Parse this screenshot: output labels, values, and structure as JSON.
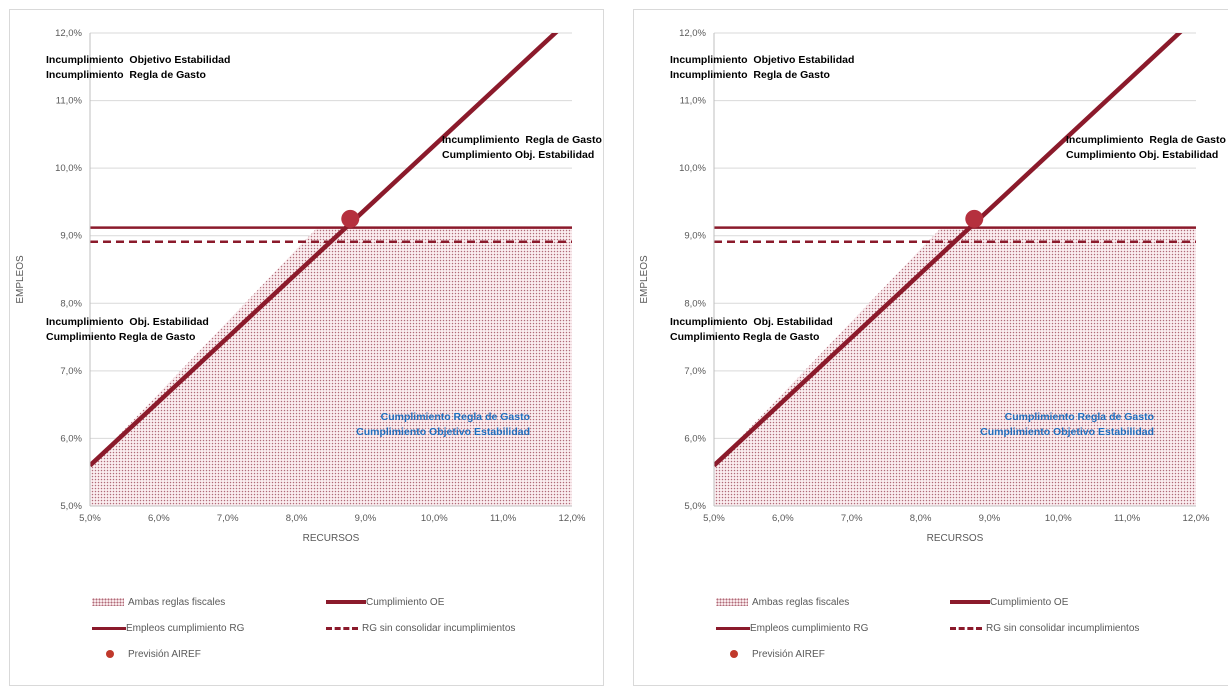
{
  "chart_data": [
    {
      "type": "line",
      "title": "",
      "xlabel": "RECURSOS",
      "ylabel": "EMPLEOS",
      "xlim": [
        5.0,
        12.0
      ],
      "ylim": [
        5.0,
        12.0
      ],
      "x_ticks": [
        "5,0%",
        "6,0%",
        "7,0%",
        "8,0%",
        "9,0%",
        "10,0%",
        "11,0%",
        "12,0%"
      ],
      "y_ticks": [
        "5,0%",
        "6,0%",
        "7,0%",
        "8,0%",
        "9,0%",
        "10,0%",
        "11,0%",
        "12,0%"
      ],
      "grid": "horizontal",
      "legend_position": "bottom",
      "series": [
        {
          "name": "Ambas reglas fiscales",
          "kind": "area",
          "x": [
            5.0,
            8.3,
            12.0
          ],
          "y": [
            5.6,
            9.12,
            9.12
          ],
          "color": "#c08090"
        },
        {
          "name": "Cumplimiento OE",
          "kind": "line",
          "x": [
            5.0,
            12.6
          ],
          "y": [
            5.6,
            12.8
          ],
          "color": "#8b1a2b"
        },
        {
          "name": "Empleos cumplimiento RG",
          "kind": "line",
          "x": [
            5.0,
            12.0
          ],
          "y": [
            9.12,
            9.12
          ],
          "color": "#8b1a2b"
        },
        {
          "name": "RG sin consolidar incumplimientos",
          "kind": "dashed",
          "x": [
            5.0,
            12.0
          ],
          "y": [
            8.91,
            8.91
          ],
          "color": "#8b1a2b"
        },
        {
          "name": "Previsión AIREF",
          "kind": "point",
          "x": [
            8.78
          ],
          "y": [
            9.25
          ],
          "color": "#b5303e"
        }
      ],
      "annotations": [
        {
          "lines": [
            "Incumplimiento  Objetivo Estabilidad",
            "Incumplimiento  Regla de Gasto"
          ],
          "color": "#000000"
        },
        {
          "lines": [
            "Incumplimiento  Regla de Gasto",
            "Cumplimiento Obj. Estabilidad"
          ],
          "color": "#000000"
        },
        {
          "lines": [
            "Incumplimiento  Obj. Estabilidad",
            "Cumplimiento Regla de Gasto"
          ],
          "color": "#000000"
        },
        {
          "lines": [
            "Cumplimiento Regla de Gasto",
            "Cumplimiento Objetivo Estabilidad"
          ],
          "color": "#1f6fbf"
        }
      ]
    },
    {
      "type": "line",
      "title": "",
      "xlabel": "RECURSOS",
      "ylabel": "EMPLEOS",
      "xlim": [
        5.0,
        12.0
      ],
      "ylim": [
        5.0,
        12.0
      ],
      "x_ticks": [
        "5,0%",
        "6,0%",
        "7,0%",
        "8,0%",
        "9,0%",
        "10,0%",
        "11,0%",
        "12,0%"
      ],
      "y_ticks": [
        "5,0%",
        "6,0%",
        "7,0%",
        "8,0%",
        "9,0%",
        "10,0%",
        "11,0%",
        "12,0%"
      ],
      "grid": "horizontal",
      "legend_position": "bottom",
      "series": [
        {
          "name": "Ambas reglas fiscales",
          "kind": "area",
          "x": [
            5.0,
            8.3,
            12.0
          ],
          "y": [
            5.6,
            9.12,
            9.12
          ],
          "color": "#c08090"
        },
        {
          "name": "Cumplimiento OE",
          "kind": "line",
          "x": [
            5.0,
            12.6
          ],
          "y": [
            5.6,
            12.8
          ],
          "color": "#8b1a2b"
        },
        {
          "name": "Empleos cumplimiento RG",
          "kind": "line",
          "x": [
            5.0,
            12.0
          ],
          "y": [
            9.12,
            9.12
          ],
          "color": "#8b1a2b"
        },
        {
          "name": "RG sin consolidar incumplimientos",
          "kind": "dashed",
          "x": [
            5.0,
            12.0
          ],
          "y": [
            8.91,
            8.91
          ],
          "color": "#8b1a2b"
        },
        {
          "name": "Previsión AIREF",
          "kind": "point",
          "x": [
            8.78
          ],
          "y": [
            9.25
          ],
          "color": "#b5303e"
        }
      ],
      "annotations": [
        {
          "lines": [
            "Incumplimiento  Objetivo Estabilidad",
            "Incumplimiento  Regla de Gasto"
          ],
          "color": "#000000"
        },
        {
          "lines": [
            "Incumplimiento  Regla de Gasto",
            "Cumplimiento Obj. Estabilidad"
          ],
          "color": "#000000"
        },
        {
          "lines": [
            "Incumplimiento  Obj. Estabilidad",
            "Cumplimiento Regla de Gasto"
          ],
          "color": "#000000"
        },
        {
          "lines": [
            "Cumplimiento Regla de Gasto",
            "Cumplimiento Objetivo Estabilidad"
          ],
          "color": "#1f6fbf"
        }
      ]
    }
  ],
  "legend": {
    "area_label": "Ambas reglas fiscales",
    "oe_label": "Cumplimiento OE",
    "rg_label": "Empleos cumplimiento RG",
    "rg_dash_label": "RG sin consolidar incumplimientos",
    "airef_label": "Previsión AIREF"
  }
}
